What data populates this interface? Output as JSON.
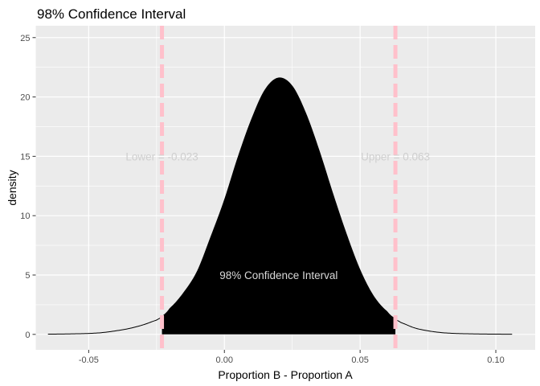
{
  "chart_data": {
    "type": "area",
    "title": "98% Confidence Interval",
    "xlabel": "Proportion B - Proportion A",
    "ylabel": "density",
    "xlim": [
      -0.0695,
      0.1145
    ],
    "ylim": [
      -1.3,
      26
    ],
    "x_ticks": [
      -0.05,
      0.0,
      0.05,
      0.1
    ],
    "x_tick_labels": [
      "-0.05",
      "0.00",
      "0.05",
      "0.10"
    ],
    "y_ticks": [
      0,
      5,
      10,
      15,
      20,
      25
    ],
    "y_tick_labels": [
      "0",
      "5",
      "10",
      "15",
      "20",
      "25"
    ],
    "grid": true,
    "density": {
      "x": [
        -0.065,
        -0.06,
        -0.055,
        -0.05,
        -0.045,
        -0.04,
        -0.035,
        -0.03,
        -0.025,
        -0.023,
        -0.02,
        -0.015,
        -0.01,
        -0.005,
        0.0,
        0.005,
        0.01,
        0.015,
        0.02,
        0.025,
        0.03,
        0.035,
        0.04,
        0.045,
        0.05,
        0.055,
        0.06,
        0.063,
        0.065,
        0.07,
        0.075,
        0.08,
        0.085,
        0.09,
        0.095,
        0.1,
        0.106
      ],
      "y": [
        0.02,
        0.03,
        0.05,
        0.08,
        0.15,
        0.3,
        0.5,
        0.8,
        1.2,
        1.5,
        2.2,
        3.5,
        5.3,
        8.2,
        11.3,
        14.9,
        18.1,
        20.6,
        21.6,
        20.9,
        18.6,
        15.4,
        11.8,
        8.4,
        5.4,
        3.2,
        1.9,
        1.3,
        1.0,
        0.55,
        0.3,
        0.15,
        0.08,
        0.05,
        0.03,
        0.02,
        0.01
      ]
    },
    "interval": {
      "lower": -0.023,
      "upper": 0.063,
      "lower_label": "Lower =  -0.023",
      "upper_label": "Upper =  0.063",
      "label_y": 15,
      "center_label": "98% Confidence Interval",
      "center_label_x": 0.02,
      "center_label_y": 5
    },
    "colors": {
      "panel": "#ebebeb",
      "grid": "#ffffff",
      "fill": "#000000",
      "interval_line": "#ffc0cb"
    }
  }
}
